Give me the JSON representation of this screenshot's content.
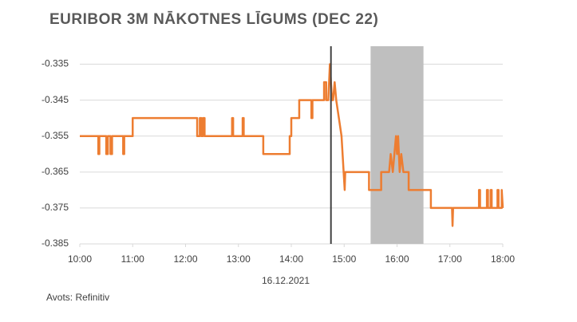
{
  "chart_data": {
    "type": "line",
    "title": "EURIBOR 3M NĀKOTNES LĪGUMS (DEC 22)",
    "xlabel": "16.12.2021",
    "source": "Avots: Refinitiv",
    "x": [
      10,
      10.35,
      10.35,
      10.37,
      10.37,
      10.5,
      10.5,
      10.53,
      10.53,
      10.58,
      10.58,
      10.61,
      10.61,
      10.82,
      10.82,
      10.84,
      10.84,
      11,
      11,
      12.22,
      12.22,
      12.27,
      12.27,
      12.3,
      12.3,
      12.33,
      12.33,
      12.36,
      12.36,
      12.88,
      12.88,
      12.9,
      12.9,
      13.08,
      13.08,
      13.1,
      13.1,
      13.47,
      13.47,
      13.97,
      13.97,
      14.0,
      14.0,
      14.15,
      14.15,
      14.38,
      14.38,
      14.4,
      14.4,
      14.62,
      14.62,
      14.66,
      14.66,
      14.7,
      14.73,
      14.77,
      14.79,
      14.82,
      14.85,
      14.9,
      14.95,
      15.01,
      15.02,
      15.47,
      15.47,
      15.7,
      15.7,
      15.85,
      15.88,
      15.92,
      15.95,
      15.98,
      16.0,
      16.02,
      16.05,
      16.08,
      16.12,
      16.22,
      16.22,
      16.64,
      16.64,
      17.04,
      17.05,
      17.06,
      17.55,
      17.55,
      17.57,
      17.57,
      17.7,
      17.7,
      17.72,
      17.72,
      17.77,
      17.77,
      17.79,
      17.79,
      17.9,
      17.9,
      17.92,
      17.92,
      17.98,
      17.98,
      18.0
    ],
    "series": [
      {
        "name": "Euribor 3M",
        "color": "#ed7d31",
        "values": [
          -0.355,
          -0.355,
          -0.36,
          -0.36,
          -0.355,
          -0.355,
          -0.36,
          -0.36,
          -0.355,
          -0.355,
          -0.36,
          -0.36,
          -0.355,
          -0.355,
          -0.36,
          -0.36,
          -0.355,
          -0.355,
          -0.35,
          -0.35,
          -0.355,
          -0.355,
          -0.35,
          -0.35,
          -0.355,
          -0.355,
          -0.35,
          -0.35,
          -0.355,
          -0.355,
          -0.35,
          -0.35,
          -0.355,
          -0.355,
          -0.35,
          -0.35,
          -0.355,
          -0.355,
          -0.36,
          -0.36,
          -0.355,
          -0.355,
          -0.35,
          -0.35,
          -0.345,
          -0.345,
          -0.35,
          -0.35,
          -0.345,
          -0.345,
          -0.34,
          -0.34,
          -0.345,
          -0.345,
          -0.335,
          -0.345,
          -0.345,
          -0.34,
          -0.345,
          -0.35,
          -0.355,
          -0.37,
          -0.365,
          -0.365,
          -0.37,
          -0.37,
          -0.365,
          -0.365,
          -0.36,
          -0.365,
          -0.36,
          -0.355,
          -0.36,
          -0.355,
          -0.365,
          -0.36,
          -0.365,
          -0.365,
          -0.37,
          -0.37,
          -0.375,
          -0.375,
          -0.38,
          -0.375,
          -0.375,
          -0.37,
          -0.37,
          -0.375,
          -0.375,
          -0.37,
          -0.37,
          -0.375,
          -0.375,
          -0.37,
          -0.37,
          -0.375,
          -0.375,
          -0.37,
          -0.37,
          -0.375,
          -0.375,
          -0.37,
          -0.375
        ]
      }
    ],
    "xlim": [
      10,
      18
    ],
    "xticks": [
      {
        "value": 10,
        "label": "10:00"
      },
      {
        "value": 11,
        "label": "11:00"
      },
      {
        "value": 12,
        "label": "12:00"
      },
      {
        "value": 13,
        "label": "13:00"
      },
      {
        "value": 14,
        "label": "14:00"
      },
      {
        "value": 15,
        "label": "15:00"
      },
      {
        "value": 16,
        "label": "16:00"
      },
      {
        "value": 17,
        "label": "17:00"
      },
      {
        "value": 18,
        "label": "18:00"
      }
    ],
    "ylim": [
      -0.385,
      -0.33
    ],
    "yticks": [
      -0.335,
      -0.345,
      -0.355,
      -0.365,
      -0.375,
      -0.385
    ],
    "grid": true,
    "vline": 14.75,
    "shaded_range": [
      15.5,
      16.5
    ]
  }
}
